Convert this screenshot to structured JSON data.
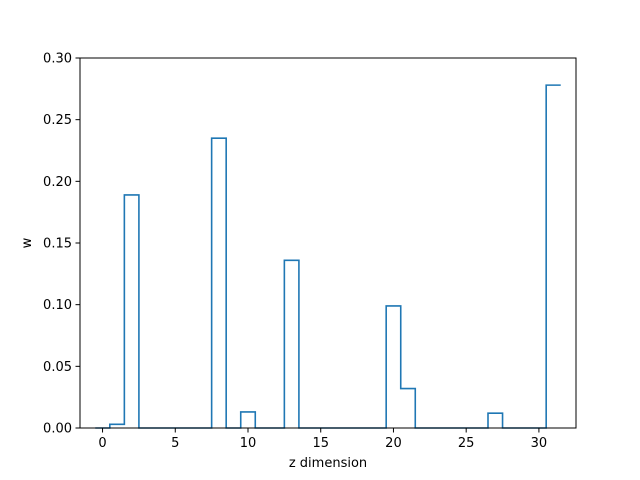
{
  "chart_data": {
    "type": "line",
    "subtype": "step",
    "title": "",
    "xlabel": "z dimension",
    "ylabel": "w",
    "xlim": [
      -1.55,
      32.55
    ],
    "ylim": [
      0,
      0.3
    ],
    "xticks": [
      0,
      5,
      10,
      15,
      20,
      25,
      30
    ],
    "yticks": [
      0.0,
      0.05,
      0.1,
      0.15,
      0.2,
      0.25,
      0.3
    ],
    "xtick_labels": [
      "0",
      "5",
      "10",
      "15",
      "20",
      "25",
      "30"
    ],
    "ytick_labels": [
      "0.00",
      "0.05",
      "0.10",
      "0.15",
      "0.20",
      "0.25",
      "0.30"
    ],
    "grid": false,
    "legend": false,
    "line_color": "#1f77b4",
    "series": [
      {
        "x": [
          0,
          1,
          2,
          3,
          4,
          5,
          6,
          7,
          8,
          9,
          10,
          11,
          12,
          13,
          14,
          15,
          16,
          17,
          18,
          19,
          20,
          21,
          22,
          23,
          24,
          25,
          26,
          27,
          28,
          29,
          30,
          31
        ],
        "values": [
          0.0,
          0.003,
          0.189,
          0.0,
          0.0,
          0.0,
          0.0,
          0.0,
          0.235,
          0.0,
          0.013,
          0.0,
          0.0,
          0.136,
          0.0,
          0.0,
          0.0,
          0.0,
          0.0,
          0.0,
          0.099,
          0.032,
          0.0,
          0.0,
          0.0,
          0.0,
          0.0,
          0.012,
          0.0,
          0.0,
          0.0,
          0.278
        ]
      }
    ]
  }
}
